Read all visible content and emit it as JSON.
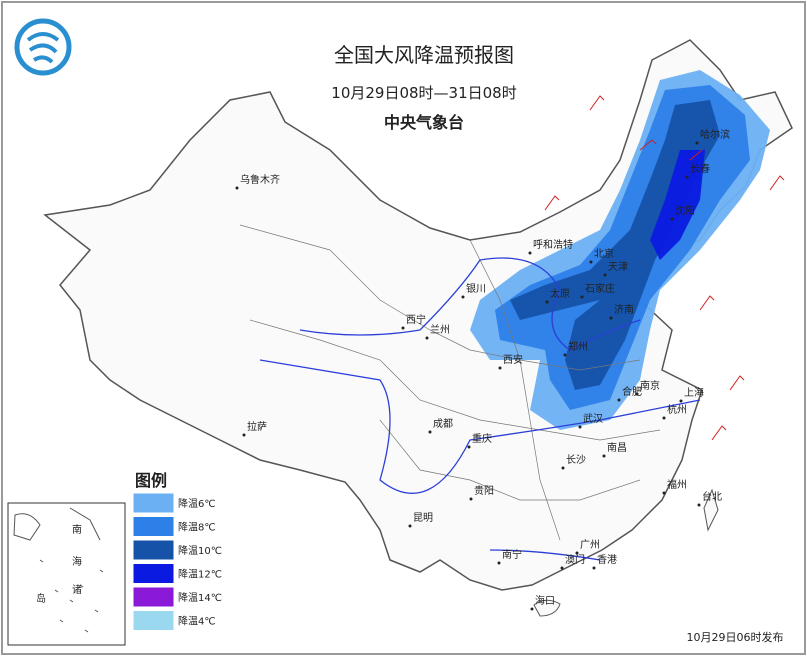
{
  "header": {
    "title": "全国大风降温预报图",
    "period": "10月29日08时—31日08时",
    "agency": "中央气象台"
  },
  "cities": [
    "乌鲁木齐",
    "呼和浩特",
    "哈尔滨",
    "长春",
    "沈阳",
    "北京",
    "天津",
    "石家庄",
    "太原",
    "银川",
    "西宁",
    "兰州",
    "济南",
    "郑州",
    "西安",
    "南京",
    "上海",
    "合肥",
    "杭州",
    "武汉",
    "成都",
    "重庆",
    "拉萨",
    "长沙",
    "南昌",
    "贵阳",
    "昆明",
    "福州",
    "台北",
    "南宁",
    "广州",
    "香港",
    "澳门",
    "海口"
  ],
  "legend": {
    "title": "图例",
    "items": [
      {
        "label": "降温6℃",
        "color": "#6cb0f4"
      },
      {
        "label": "降温8℃",
        "color": "#2d80e8"
      },
      {
        "label": "降温10℃",
        "color": "#1552a8"
      },
      {
        "label": "降温12℃",
        "color": "#0b1ae0"
      },
      {
        "label": "降温14℃",
        "color": "#8a1ad8"
      },
      {
        "label": "降温4℃",
        "color": "#9ad8f0"
      }
    ]
  },
  "inset": {
    "labels": [
      "南",
      "海",
      "诸",
      "岛"
    ]
  },
  "footer": {
    "issued": "10月29日06时发布"
  }
}
